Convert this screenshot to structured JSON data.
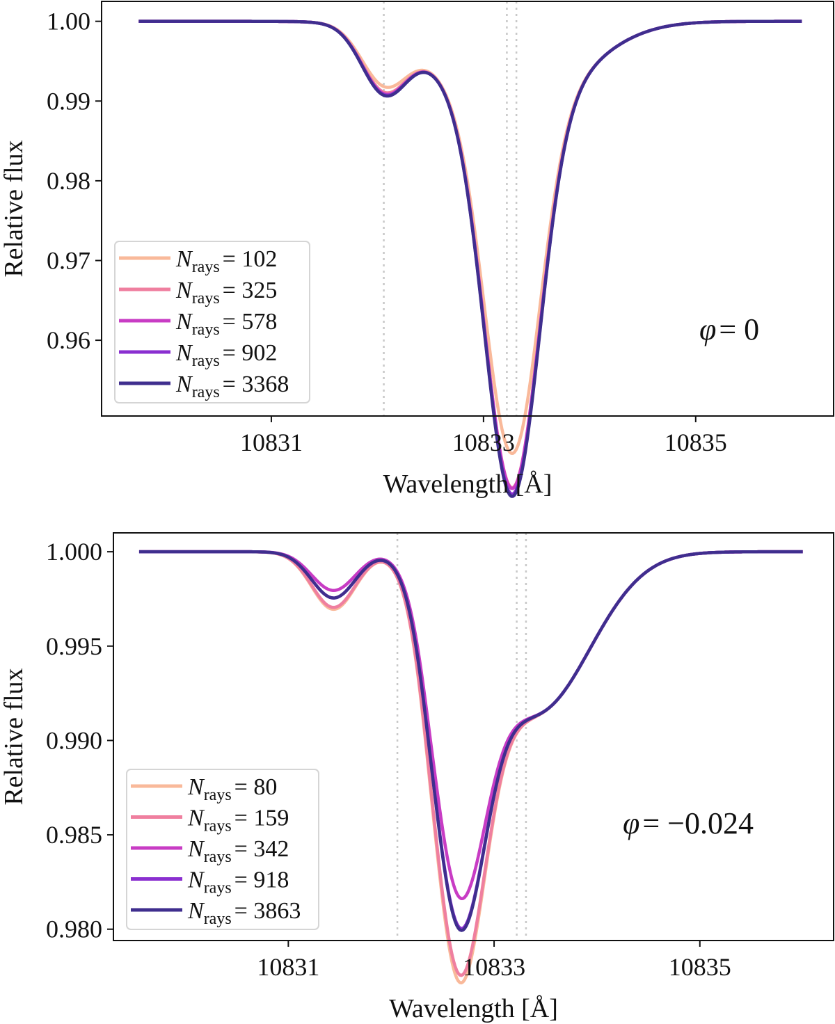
{
  "chart_data": [
    {
      "type": "line",
      "xlabel": "Wavelength [Å]",
      "ylabel": "Relative flux",
      "xlim": [
        10829.4,
        10836.3
      ],
      "ylim": [
        0.9505,
        1.0025
      ],
      "xticks": [
        10831,
        10833,
        10835
      ],
      "xtick_labels": [
        "10831",
        "10833",
        "10835"
      ],
      "yticks": [
        0.96,
        0.97,
        0.98,
        0.99,
        1.0
      ],
      "ytick_labels": [
        "0.96",
        "0.97",
        "0.98",
        "0.99",
        "1.00"
      ],
      "vlines": [
        10832.06,
        10833.22,
        10833.31
      ],
      "annotation": {
        "prefix": "φ",
        "text": "= 0"
      },
      "legend_location": "lower-left",
      "legend_label": {
        "symbol": "N",
        "subscript": "rays"
      },
      "curve_params": {
        "x_start": 10829.75,
        "x_end": 10836.0,
        "blueshift": 0.0
      },
      "series": [
        {
          "name": "N_rays = 102",
          "label_value": "= 102",
          "color": "#f9b99a",
          "depth_weak": 0.0066,
          "depth_main": 0.0422
        },
        {
          "name": "N_rays = 325",
          "label_value": "= 325",
          "color": "#ef7f9f",
          "depth_weak": 0.0073,
          "depth_main": 0.0465
        },
        {
          "name": "N_rays = 578",
          "label_value": "= 578",
          "color": "#c83cc4",
          "depth_weak": 0.0075,
          "depth_main": 0.0466
        },
        {
          "name": "N_rays = 902",
          "label_value": "= 902",
          "color": "#8a2fd0",
          "depth_weak": 0.0076,
          "depth_main": 0.0473
        },
        {
          "name": "N_rays = 3368",
          "label_value": "= 3368",
          "color": "#3f2e8e",
          "depth_weak": 0.0077,
          "depth_main": 0.0476
        }
      ]
    },
    {
      "type": "line",
      "xlabel": "Wavelength [Å]",
      "ylabel": "Relative flux",
      "xlim": [
        10829.3,
        10836.3
      ],
      "ylim": [
        0.9794,
        1.001
      ],
      "xticks": [
        10831,
        10833,
        10835
      ],
      "xtick_labels": [
        "10831",
        "10833",
        "10835"
      ],
      "yticks": [
        0.98,
        0.985,
        0.99,
        0.995,
        1.0
      ],
      "ytick_labels": [
        "0.980",
        "0.985",
        "0.990",
        "0.995",
        "1.000"
      ],
      "vlines": [
        10832.06,
        10833.22,
        10833.31
      ],
      "annotation": {
        "prefix": "φ",
        "text": "= −0.024"
      },
      "legend_location": "lower-left",
      "legend_label": {
        "symbol": "N",
        "subscript": "rays"
      },
      "curve_params": {
        "x_start": 10829.55,
        "x_end": 10836.0,
        "blueshift": 0.62
      },
      "series": [
        {
          "name": "N_rays = 80",
          "label_value": "= 80",
          "color": "#f9b99a",
          "depth_weak": 0.00305,
          "depth_main": 0.0196
        },
        {
          "name": "N_rays = 159",
          "label_value": "= 159",
          "color": "#ef7f9f",
          "depth_weak": 0.00295,
          "depth_main": 0.0192
        },
        {
          "name": "N_rays = 342",
          "label_value": "= 342",
          "color": "#c83cc4",
          "depth_weak": 0.00205,
          "depth_main": 0.0151
        },
        {
          "name": "N_rays = 918",
          "label_value": "= 918",
          "color": "#8a2fd0",
          "depth_weak": 0.00245,
          "depth_main": 0.0167
        },
        {
          "name": "N_rays = 3863",
          "label_value": "= 3863",
          "color": "#3f2e8e",
          "depth_weak": 0.00245,
          "depth_main": 0.0168
        }
      ]
    }
  ]
}
